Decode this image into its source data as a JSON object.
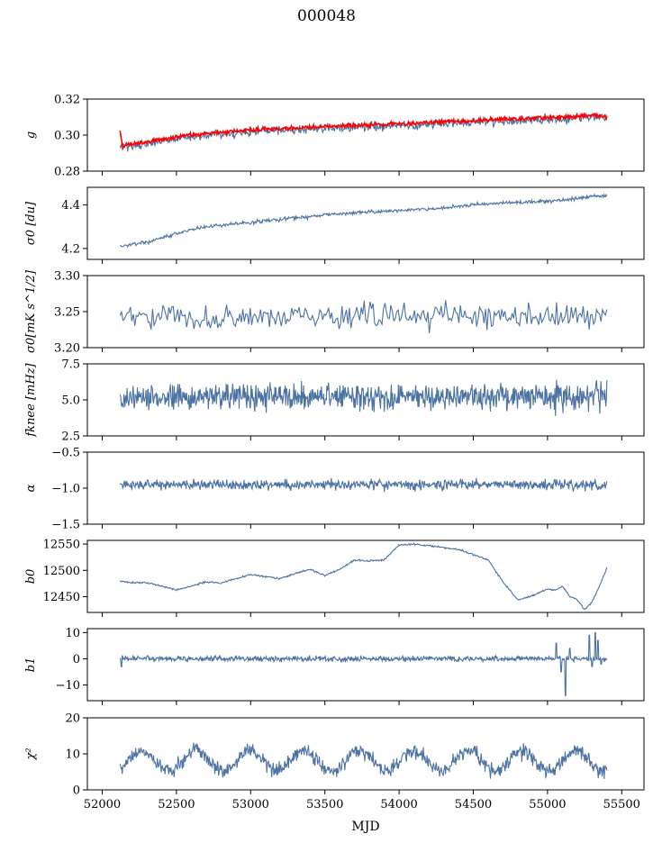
{
  "figure": {
    "title": "000048",
    "xlabel": "MJD"
  },
  "colors": {
    "series": "#4c72a4",
    "fit": "#ff0000",
    "axis": "#000000"
  },
  "chart_data": [
    {
      "type": "line",
      "ylabel": "g",
      "xlim": [
        51900,
        55650
      ],
      "ylim": [
        0.28,
        0.32
      ],
      "yticks": [
        "0.28",
        "0.30",
        "0.32"
      ],
      "ytick_values": [
        0.28,
        0.3,
        0.32
      ],
      "series": [
        {
          "kind": "trend",
          "x": [
            52120,
            52150,
            52300,
            52500,
            52700,
            53000,
            53300,
            53600,
            53900,
            54200,
            54500,
            54800,
            55100,
            55300,
            55400
          ],
          "values": [
            0.294,
            0.294,
            0.295,
            0.298,
            0.3,
            0.302,
            0.303,
            0.304,
            0.305,
            0.306,
            0.307,
            0.308,
            0.309,
            0.31,
            0.31
          ],
          "noise": 0.0012,
          "color": "#4c72a4"
        },
        {
          "kind": "trend",
          "x": [
            52120,
            52140,
            52160,
            52300,
            52500,
            52700,
            53000,
            53300,
            53600,
            53900,
            54200,
            54500,
            54800,
            55100,
            55300,
            55400
          ],
          "values": [
            0.302,
            0.293,
            0.295,
            0.296,
            0.299,
            0.301,
            0.303,
            0.304,
            0.305,
            0.306,
            0.307,
            0.308,
            0.309,
            0.31,
            0.311,
            0.31
          ],
          "noise": 0.0006,
          "color": "#ff0000"
        }
      ]
    },
    {
      "type": "line",
      "ylabel": "σ0 [du]",
      "xlim": [
        51900,
        55650
      ],
      "ylim": [
        4.15,
        4.48
      ],
      "yticks": [
        "4.2",
        "4.4"
      ],
      "ytick_values": [
        4.2,
        4.4
      ],
      "series": [
        {
          "kind": "trend",
          "x": [
            52120,
            52300,
            52500,
            52700,
            53000,
            53300,
            53600,
            53900,
            54200,
            54500,
            54800,
            55100,
            55300,
            55400
          ],
          "values": [
            4.21,
            4.23,
            4.27,
            4.3,
            4.32,
            4.34,
            4.36,
            4.37,
            4.38,
            4.4,
            4.41,
            4.42,
            4.44,
            4.44
          ],
          "noise": 0.004,
          "color": "#4c72a4"
        }
      ]
    },
    {
      "type": "line",
      "ylabel": "σ0[mK s^1/2]",
      "xlim": [
        51900,
        55650
      ],
      "ylim": [
        3.2,
        3.3
      ],
      "yticks": [
        "3.20",
        "3.25",
        "3.30"
      ],
      "ytick_values": [
        3.2,
        3.25,
        3.3
      ],
      "series": [
        {
          "kind": "noise",
          "xrange": [
            52120,
            55400
          ],
          "mean": 3.243,
          "noise": 0.009,
          "n": 330,
          "color": "#4c72a4"
        }
      ]
    },
    {
      "type": "line",
      "ylabel": "fknee [mHz]",
      "xlim": [
        51900,
        55650
      ],
      "ylim": [
        2.5,
        7.5
      ],
      "yticks": [
        "2.5",
        "5.0",
        "7.5"
      ],
      "ytick_values": [
        2.5,
        5.0,
        7.5
      ],
      "series": [
        {
          "kind": "noise",
          "xrange": [
            52120,
            55400
          ],
          "mean": 5.2,
          "noise": 0.45,
          "n": 900,
          "color": "#4c72a4"
        }
      ]
    },
    {
      "type": "line",
      "ylabel": "α",
      "xlim": [
        51900,
        55650
      ],
      "ylim": [
        -1.5,
        -0.5
      ],
      "yticks": [
        "−1.5",
        "−1.0",
        "−0.5"
      ],
      "ytick_values": [
        -1.5,
        -1.0,
        -0.5
      ],
      "series": [
        {
          "kind": "noise",
          "xrange": [
            52120,
            55400
          ],
          "mean": -0.95,
          "noise": 0.035,
          "n": 900,
          "color": "#4c72a4"
        }
      ]
    },
    {
      "type": "line",
      "ylabel": "b0",
      "xlim": [
        51900,
        55650
      ],
      "ylim": [
        12420,
        12557
      ],
      "yticks": [
        "12450",
        "12500",
        "12550"
      ],
      "ytick_values": [
        12450,
        12500,
        12550
      ],
      "series": [
        {
          "kind": "trend",
          "x": [
            52120,
            52200,
            52300,
            52400,
            52500,
            52600,
            52700,
            52800,
            53000,
            53200,
            53300,
            53400,
            53500,
            53600,
            53700,
            53800,
            53900,
            54000,
            54100,
            54200,
            54400,
            54600,
            54700,
            54800,
            54900,
            55000,
            55050,
            55100,
            55150,
            55200,
            55250,
            55300,
            55350,
            55400
          ],
          "values": [
            12480,
            12476,
            12477,
            12470,
            12463,
            12470,
            12478,
            12476,
            12492,
            12484,
            12494,
            12502,
            12490,
            12502,
            12520,
            12518,
            12520,
            12548,
            12550,
            12547,
            12540,
            12520,
            12478,
            12444,
            12452,
            12465,
            12462,
            12470,
            12450,
            12445,
            12425,
            12440,
            12470,
            12505
          ],
          "noise": 0.8,
          "color": "#4c72a4"
        }
      ]
    },
    {
      "type": "line",
      "ylabel": "b1",
      "xlim": [
        51900,
        55650
      ],
      "ylim": [
        -16,
        11.5
      ],
      "yticks": [
        "−10",
        "0",
        "10"
      ],
      "ytick_values": [
        -10,
        0,
        10
      ],
      "series": [
        {
          "kind": "noise",
          "xrange": [
            52120,
            55400
          ],
          "mean": 0,
          "noise": 0.5,
          "n": 900,
          "color": "#4c72a4",
          "spikes": [
            [
              52130,
              -3
            ],
            [
              55060,
              6
            ],
            [
              55090,
              -5
            ],
            [
              55120,
              -14
            ],
            [
              55150,
              4
            ],
            [
              55280,
              9
            ],
            [
              55300,
              -3
            ],
            [
              55320,
              10
            ],
            [
              55340,
              7
            ],
            [
              55360,
              -2
            ]
          ]
        }
      ]
    },
    {
      "type": "line",
      "ylabel": "χ²",
      "xlim": [
        51900,
        55650
      ],
      "ylim": [
        0,
        20
      ],
      "yticks": [
        "0",
        "10",
        "20"
      ],
      "ytick_values": [
        0,
        10,
        20
      ],
      "xticks": [
        "52000",
        "52500",
        "53000",
        "53500",
        "54000",
        "54500",
        "55000",
        "55500"
      ],
      "xtick_values": [
        52000,
        52500,
        53000,
        53500,
        54000,
        54500,
        55000,
        55500
      ],
      "series": [
        {
          "kind": "periodic",
          "xrange": [
            52120,
            55400
          ],
          "mean": 8,
          "amp": 2.8,
          "period": 365,
          "phase": 52270,
          "noise": 1.0,
          "n": 900,
          "color": "#4c72a4"
        }
      ]
    }
  ]
}
